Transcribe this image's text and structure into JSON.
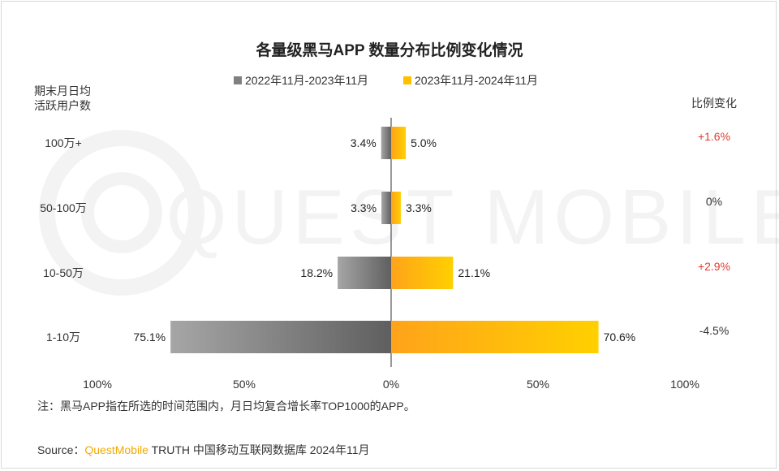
{
  "chart_data": {
    "type": "bar",
    "orientation": "horizontal-diverging",
    "title": "各量级黑马APP 数量分布比例变化情况",
    "y_axis_title": [
      "期末月日均",
      "活跃用户数"
    ],
    "change_header": "比例变化",
    "categories": [
      "100万+",
      "50-100万",
      "10-50万",
      "1-10万"
    ],
    "series": [
      {
        "name": "2022年11月-2023年11月",
        "color": "#808080",
        "direction": "left",
        "values": [
          3.4,
          3.3,
          18.2,
          75.1
        ],
        "labels": [
          "3.4%",
          "3.3%",
          "18.2%",
          "75.1%"
        ]
      },
      {
        "name": "2023年11月-2024年11月",
        "color": "#ffc000",
        "direction": "right",
        "values": [
          5.0,
          3.3,
          21.1,
          70.6
        ],
        "labels": [
          "5.0%",
          "3.3%",
          "21.1%",
          "70.6%"
        ]
      }
    ],
    "changes": [
      "+1.6%",
      "0%",
      "+2.9%",
      "-4.5%"
    ],
    "change_colors": [
      "#e03c31",
      "#333333",
      "#e03c31",
      "#333333"
    ],
    "x_ticks": [
      "100%",
      "50%",
      "0%",
      "50%",
      "100%"
    ],
    "xlim": [
      -100,
      100
    ],
    "legend_position": "top-center",
    "grid": false
  },
  "watermark": "QUEST MOBILE",
  "note": "注：黑马APP指在所选的时间范围内，月日均复合增长率TOP1000的APP。",
  "source": {
    "prefix": "Source：",
    "brand": "QuestMobile",
    "rest": " TRUTH 中国移动互联网数据库 2024年11月"
  }
}
